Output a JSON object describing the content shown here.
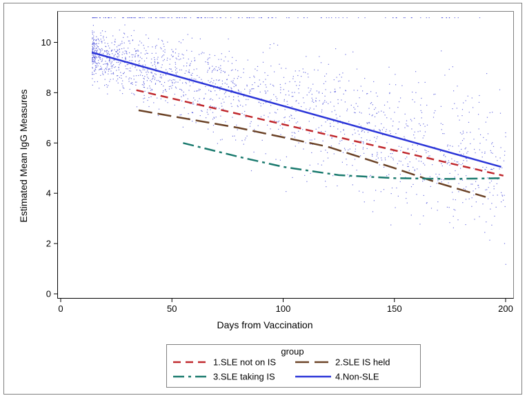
{
  "chart_data": {
    "type": "line",
    "title": "",
    "xlabel": "Days from Vaccination",
    "ylabel": "Estimated Mean IgG Measures",
    "xlim": [
      0,
      200
    ],
    "ylim": [
      0,
      11
    ],
    "xticks": [
      0,
      50,
      100,
      150,
      200
    ],
    "yticks": [
      0,
      2,
      4,
      6,
      8,
      10
    ],
    "grid": false,
    "legend": {
      "title": "group",
      "placement": "bottom-center",
      "entries": [
        "1.SLE not on IS",
        "2.SLE IS held",
        "3.SLE taking IS",
        "4.Non-SLE"
      ]
    },
    "series": [
      {
        "name": "1.SLE not on IS",
        "color": "#c0282d",
        "dash": "dashed",
        "x": [
          34,
          199
        ],
        "y": [
          8.1,
          4.7
        ]
      },
      {
        "name": "2.SLE IS held",
        "color": "#6b4226",
        "dash": "long-dash",
        "x": [
          35,
          80,
          120,
          150,
          170,
          191
        ],
        "y": [
          7.3,
          6.6,
          5.85,
          5.0,
          4.4,
          3.85
        ]
      },
      {
        "name": "3.SLE taking IS",
        "color": "#1a7a6e",
        "dash": "dash-dot",
        "x": [
          55,
          80,
          100,
          125,
          150,
          175,
          199
        ],
        "y": [
          6.0,
          5.45,
          5.05,
          4.72,
          4.6,
          4.57,
          4.6
        ]
      },
      {
        "name": "4.Non-SLE",
        "color": "#2b35d8",
        "dash": "solid",
        "x": [
          14,
          198
        ],
        "y": [
          9.6,
          5.05
        ]
      }
    ],
    "scatter": {
      "color": "#3a3fd6",
      "description_points": "individual patient IgG observations"
    }
  }
}
